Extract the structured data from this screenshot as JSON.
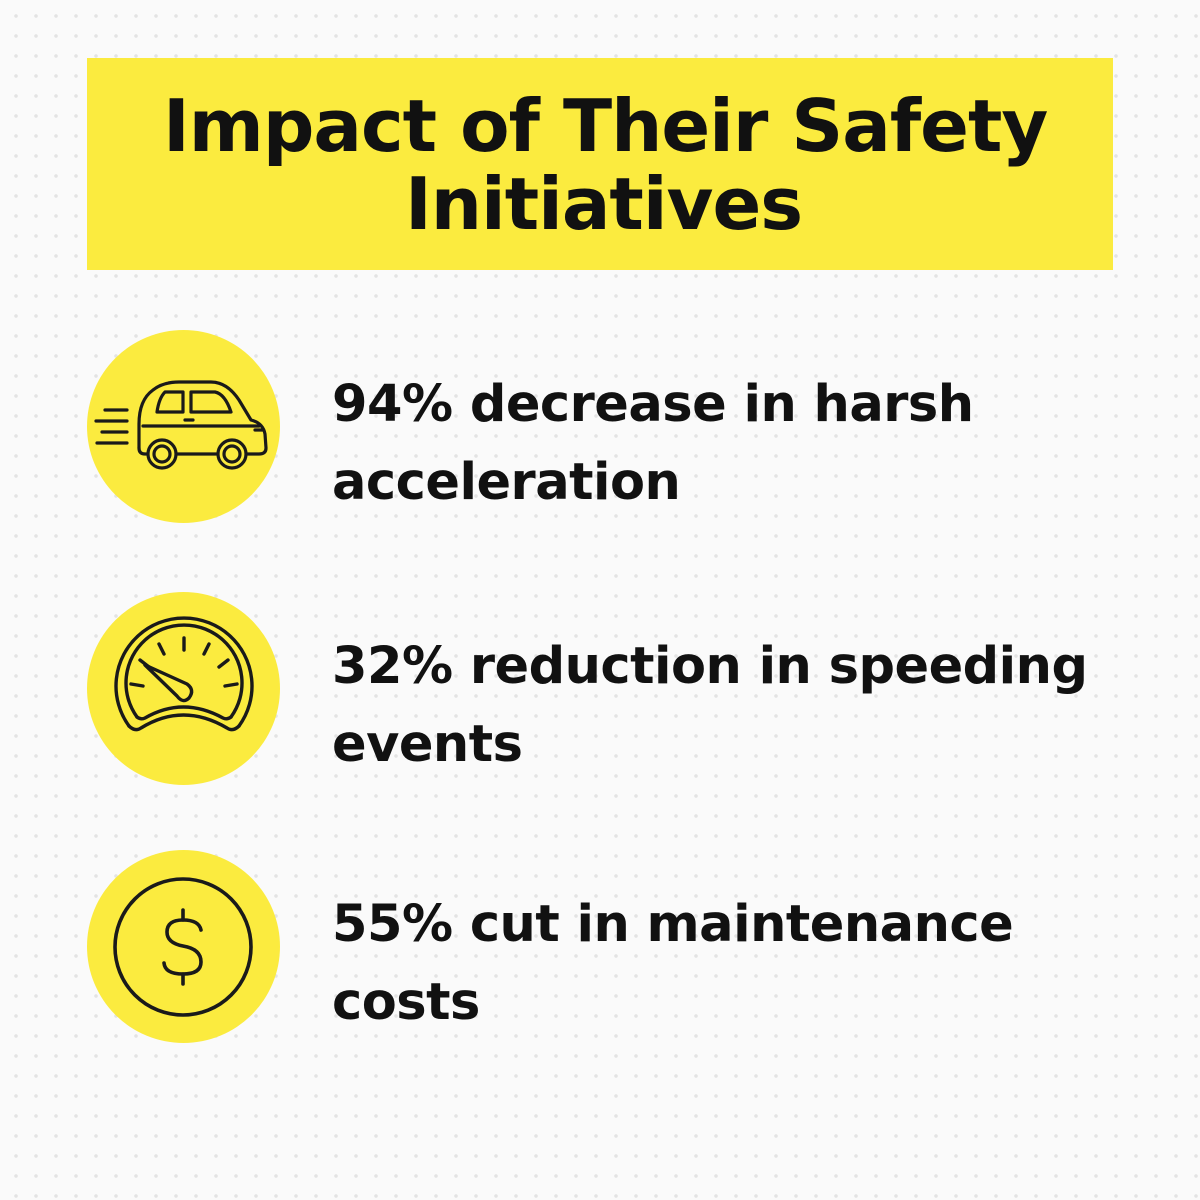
{
  "title": {
    "line1": "Impact of Their Safety",
    "line2": "Initiatives"
  },
  "stats": [
    {
      "icon": "car-icon",
      "line1": "94% decrease in harsh",
      "line2": "acceleration"
    },
    {
      "icon": "speedometer-icon",
      "line1": "32% reduction in speeding",
      "line2": "events"
    },
    {
      "icon": "dollar-coin-icon",
      "line1": "55% cut in maintenance",
      "line2": "costs"
    }
  ],
  "colors": {
    "accent": "#fbeb3f",
    "text": "#111111",
    "background": "#fafafa"
  }
}
